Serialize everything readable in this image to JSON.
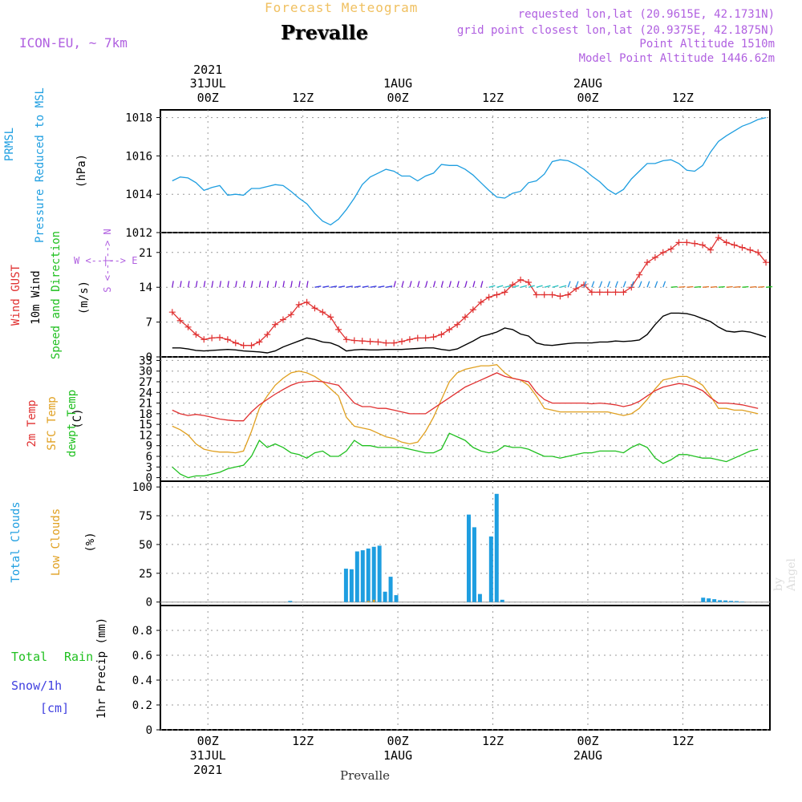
{
  "header": {
    "title": "Forecast Meteogram",
    "location": "Prevalle",
    "model": "ICON-EU, ~ 7km",
    "requested": "requested lon,lat (20.9615E, 42.1731N)",
    "gridpoint": "grid point closest lon,lat (20.9375E, 42.1875N)",
    "point_alt": "Point Altitude 1510m",
    "model_alt": "Model Point Altitude 1446.62m"
  },
  "top_axis": [
    {
      "line1": "2021",
      "line2": "31JUL",
      "line3": "00Z",
      "h": 0
    },
    {
      "line1": "",
      "line2": "",
      "line3": "12Z",
      "h": 12
    },
    {
      "line1": "",
      "line2": "1AUG",
      "line3": "00Z",
      "h": 24
    },
    {
      "line1": "",
      "line2": "",
      "line3": "12Z",
      "h": 36
    },
    {
      "line1": "",
      "line2": "2AUG",
      "line3": "00Z",
      "h": 48
    },
    {
      "line1": "",
      "line2": "",
      "line3": "12Z",
      "h": 60
    }
  ],
  "bottom_axis": [
    {
      "line1": "00Z",
      "line2": "31JUL",
      "line3": "2021",
      "h": 0
    },
    {
      "line1": "12Z",
      "line2": "",
      "line3": "",
      "h": 12
    },
    {
      "line1": "00Z",
      "line2": "1AUG",
      "line3": "",
      "h": 24
    },
    {
      "line1": "12Z",
      "line2": "",
      "line3": "",
      "h": 36
    },
    {
      "line1": "00Z",
      "line2": "2AUG",
      "line3": "",
      "h": 48
    },
    {
      "line1": "12Z",
      "line2": "",
      "line3": "",
      "h": 60
    }
  ],
  "footer_location": "Prevalle",
  "credit": "by Angel",
  "labels": {
    "p1": {
      "a": "PRMSL",
      "b": "Pressure Reduced to MSL",
      "unit": "(hPa)"
    },
    "p2": {
      "a": "Wind GUST",
      "b": "10m Wind",
      "c": "Speed and Direction",
      "unit": "(m/s)",
      "compass_h": "W <--|--> E",
      "compass_v": "S <--|--> N"
    },
    "p3": {
      "a": "2m Temp",
      "b": "SFC Temp",
      "c": "dewpt Temp",
      "unit": "(C)"
    },
    "p4": {
      "a": "Total Clouds",
      "b": "Low Clouds",
      "unit": "(%)"
    },
    "p5": {
      "a": "Total",
      "b": "Rain",
      "c": "Snow/1h",
      "d": "[cm]",
      "unit": "1hr Precip (mm)"
    }
  },
  "colors": {
    "pressure": "#1e9ee0",
    "gust": "#e03030",
    "wind": "#000000",
    "temp2m": "#e03030",
    "sfctemp": "#e0a020",
    "dewpt": "#20c020",
    "totalclouds": "#1e9ee0",
    "lowclouds": "#e0a020",
    "label_purple": "#b060e0",
    "label_green": "#20c020",
    "label_blue": "#4040e0"
  },
  "chart_data": [
    {
      "type": "line",
      "name": "pressure",
      "ylim": [
        1012,
        1018.4
      ],
      "yticks": [
        "1012",
        "1014",
        "1016",
        "1018"
      ],
      "x": [
        -4.5,
        -3.5,
        -2.5,
        -1.5,
        -0.5,
        0.5,
        1.5,
        2.5,
        3.5,
        4.5,
        5.5,
        6.5,
        7.5,
        8.5,
        9.5,
        10.5,
        11.5,
        12.5,
        13.5,
        14.5,
        15.5,
        16.5,
        17.5,
        18.5,
        19.5,
        20.5,
        21.5,
        22.5,
        23.5,
        24.5,
        25.5,
        26.5,
        27.5,
        28.5,
        29.5,
        30.5,
        31.5,
        32.5,
        33.5,
        34.5,
        35.5,
        36.5,
        37.5,
        38.5,
        39.5,
        40.5,
        41.5,
        42.5,
        43.5,
        44.5,
        45.5,
        46.5,
        47.5,
        48.5,
        49.5,
        50.5,
        51.5,
        52.5,
        53.5,
        54.5,
        55.5,
        56.5,
        57.5,
        58.5,
        59.5,
        60.5,
        61.5,
        62.5,
        63.5,
        64.5,
        65.5,
        66.5,
        67.5,
        68.5,
        69.5,
        70.5
      ],
      "values": [
        1014.7,
        1014.9,
        1014.85,
        1014.6,
        1014.2,
        1014.35,
        1014.45,
        1013.95,
        1014.0,
        1013.95,
        1014.3,
        1014.3,
        1014.4,
        1014.5,
        1014.45,
        1014.15,
        1013.8,
        1013.5,
        1013.0,
        1012.6,
        1012.4,
        1012.7,
        1013.2,
        1013.8,
        1014.5,
        1014.9,
        1015.1,
        1015.3,
        1015.2,
        1014.95,
        1014.95,
        1014.7,
        1014.95,
        1015.1,
        1015.55,
        1015.5,
        1015.5,
        1015.3,
        1015.0,
        1014.6,
        1014.2,
        1013.85,
        1013.8,
        1014.05,
        1014.15,
        1014.6,
        1014.7,
        1015.05,
        1015.7,
        1015.8,
        1015.75,
        1015.55,
        1015.3,
        1014.95,
        1014.65,
        1014.25,
        1014.0,
        1014.25,
        1014.8,
        1015.2,
        1015.6,
        1015.6,
        1015.75,
        1015.8,
        1015.6,
        1015.25,
        1015.2,
        1015.5,
        1016.2,
        1016.75,
        1017.05,
        1017.3,
        1017.55,
        1017.7,
        1017.9,
        1018.0
      ]
    },
    {
      "type": "line",
      "name": "wind",
      "ylim": [
        0,
        25
      ],
      "yticks": [
        "0",
        "7",
        "14",
        "21"
      ],
      "gust": [
        9,
        7.3,
        6,
        4.5,
        3.5,
        3.8,
        3.9,
        3.5,
        2.8,
        2.3,
        2.3,
        3,
        4.5,
        6.5,
        7.5,
        8.5,
        10.5,
        11,
        9.8,
        9,
        8,
        5.5,
        3.5,
        3.3,
        3.2,
        3.1,
        3,
        2.8,
        2.8,
        3.1,
        3.5,
        3.8,
        3.8,
        4,
        4.5,
        5.5,
        6.5,
        8,
        9.5,
        11,
        12,
        12.5,
        13,
        14.5,
        15.5,
        15,
        12.5,
        12.5,
        12.5,
        12.2,
        12.5,
        13.7,
        14.5,
        13,
        13,
        13,
        13,
        13,
        14,
        16.5,
        19,
        20,
        21,
        21.7,
        23,
        23,
        22.8,
        22.5,
        21.5,
        24,
        23,
        22.5,
        22,
        21.5,
        21,
        19
      ]
    },
    {
      "type": "line",
      "name": "wind10m",
      "values": [
        1.8,
        1.8,
        1.6,
        1.3,
        1.2,
        1.3,
        1.4,
        1.5,
        1.4,
        1.2,
        1.1,
        1,
        0.8,
        1.2,
        2,
        2.6,
        3.2,
        3.8,
        3.5,
        3,
        2.8,
        2.2,
        1.2,
        1.4,
        1.5,
        1.4,
        1.4,
        1.5,
        1.5,
        1.5,
        1.6,
        1.7,
        1.8,
        1.8,
        1.5,
        1.3,
        1.6,
        2.4,
        3.2,
        4.1,
        4.5,
        5,
        5.8,
        5.5,
        4.6,
        4.2,
        2.8,
        2.4,
        2.3,
        2.5,
        2.7,
        2.8,
        2.8,
        2.8,
        3,
        3,
        3.2,
        3.1,
        3.2,
        3.4,
        4.5,
        6.5,
        8.2,
        8.8,
        8.8,
        8.7,
        8.3,
        7.7,
        7.1,
        6,
        5.2,
        5,
        5.2,
        5,
        4.5,
        4
      ]
    },
    {
      "type": "line",
      "name": "temperature",
      "ylim": [
        -1,
        34
      ],
      "yticks": [
        "0",
        "3",
        "6",
        "9",
        "12",
        "15",
        "18",
        "21",
        "24",
        "27",
        "30",
        "33"
      ],
      "temp2m": [
        19,
        18,
        17.5,
        17.8,
        17.5,
        17,
        16.5,
        16.2,
        16,
        16,
        18.5,
        20.5,
        22,
        23.5,
        24.8,
        26,
        26.8,
        27,
        27.2,
        27,
        26.5,
        26,
        23.5,
        21,
        20,
        20,
        19.5,
        19.5,
        19,
        18.5,
        18,
        18,
        18,
        19.5,
        21,
        22.5,
        24,
        25.5,
        26.5,
        27.5,
        28.5,
        29.5,
        28.5,
        28,
        27.5,
        27,
        24,
        22,
        21,
        21,
        21,
        21,
        21,
        20.8,
        21,
        20.8,
        20.5,
        20,
        20.5,
        21.5,
        23,
        24.5,
        25.5,
        26,
        26.5,
        26.2,
        25.5,
        24.5,
        22.5,
        21,
        21,
        20.8,
        20.5,
        20,
        19.5
      ],
      "sfctemp": [
        14.5,
        13.5,
        12,
        9.5,
        8,
        7.5,
        7.2,
        7.2,
        7,
        7.5,
        13,
        19.5,
        23,
        26,
        28,
        29.5,
        30,
        29.5,
        28.5,
        27,
        25,
        23,
        17,
        14.5,
        14,
        13.5,
        12.5,
        11.5,
        11,
        10,
        9.5,
        10,
        13,
        17,
        22,
        27,
        29.5,
        30.5,
        31,
        31.5,
        31.5,
        31.8,
        29.5,
        28,
        27.5,
        26,
        23,
        19.5,
        19,
        18.5,
        18.5,
        18.5,
        18.5,
        18.5,
        18.5,
        18.5,
        18,
        17.5,
        18,
        19.5,
        22,
        25,
        27.5,
        28,
        28.5,
        28.5,
        27.5,
        26,
        23,
        19.5,
        19.5,
        19,
        19,
        18.5,
        18
      ],
      "dewpt": [
        3,
        1,
        0,
        0.5,
        0.5,
        1,
        1.5,
        2.5,
        3,
        3.5,
        6,
        10.5,
        8.5,
        9.5,
        8.5,
        7,
        6.5,
        5.5,
        7,
        7.5,
        6,
        6,
        7.5,
        10.5,
        9,
        9,
        8.5,
        8.5,
        8.5,
        8.5,
        8,
        7.5,
        7,
        7,
        8,
        12.5,
        11.5,
        10.5,
        8.5,
        7.5,
        7,
        7.5,
        9,
        8.5,
        8.5,
        8,
        7,
        6,
        6,
        5.5,
        6,
        6.5,
        7,
        7,
        7.5,
        7.5,
        7.5,
        7,
        8.5,
        9.5,
        8.5,
        5.5,
        4,
        5,
        6.5,
        6.5,
        6,
        5.5,
        5.5,
        5,
        4.5,
        5.5,
        6.5,
        7.5,
        8
      ]
    },
    {
      "type": "bar",
      "name": "clouds",
      "ylim": [
        -3,
        105
      ],
      "yticks": [
        "0",
        "25",
        "50",
        "75",
        "100"
      ],
      "total": [
        0,
        0,
        0,
        0,
        0,
        0,
        0,
        0,
        0,
        0,
        0,
        0,
        0,
        0,
        0,
        0,
        0,
        0,
        0,
        1,
        0,
        0,
        0,
        0,
        0,
        0,
        0,
        0,
        0,
        29,
        28.5,
        44,
        45,
        46.5,
        48,
        49,
        9,
        22,
        6,
        0,
        0,
        0,
        0,
        0,
        0,
        0,
        0,
        0,
        0,
        0,
        0,
        76,
        65,
        7,
        0,
        57,
        94,
        2,
        0,
        0,
        0,
        0,
        0,
        0,
        0,
        0,
        0,
        0,
        0,
        0,
        0,
        0,
        0,
        0,
        0,
        0,
        0,
        0,
        0,
        0,
        0,
        0,
        0,
        0,
        0,
        0,
        0,
        0,
        0,
        0,
        0,
        0,
        0,
        3.8,
        3.2,
        2.5,
        1.6,
        1.4,
        1,
        0.8,
        0.4
      ],
      "low": [
        0,
        0,
        0,
        0,
        0,
        0,
        0,
        0,
        0,
        0,
        0,
        0,
        0,
        0,
        0,
        0,
        0,
        0,
        0,
        0,
        0,
        0,
        0,
        0,
        0,
        0,
        0,
        0,
        0,
        0,
        0,
        0,
        0,
        1,
        2,
        0,
        0,
        0,
        0,
        0,
        0,
        0,
        0,
        0,
        0,
        0,
        0,
        0,
        0,
        0,
        0,
        0,
        0,
        0,
        0,
        0,
        0,
        0,
        0,
        0,
        0,
        0,
        0,
        0,
        0,
        0,
        0,
        0,
        0,
        0,
        0,
        0,
        0,
        0,
        0,
        0,
        0,
        0,
        0,
        0,
        0,
        0,
        0,
        0,
        0,
        0,
        0,
        0,
        0,
        0,
        0,
        0,
        0,
        0,
        0,
        0,
        0,
        0,
        0,
        0,
        0,
        0,
        0,
        0
      ]
    },
    {
      "type": "bar",
      "name": "precip",
      "ylim": [
        0,
        1.0
      ],
      "yticks": [
        "0",
        "0.2",
        "0.4",
        "0.6",
        "0.8"
      ],
      "values": []
    }
  ]
}
